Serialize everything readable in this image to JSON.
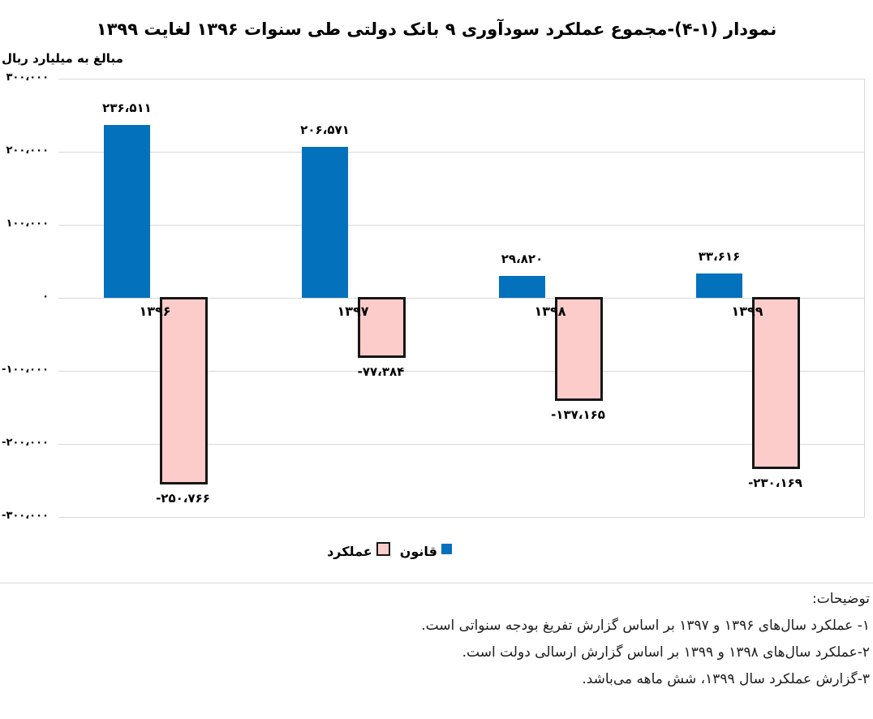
{
  "title": "نمودار (۱-۴)-مجموع عملکرد سودآوری ۹ بانک دولتی طی سنوات ۱۳۹۶ لغایت ۱۳۹۹",
  "axis": {
    "unit_label": "مبالغ به میلیارد ریال",
    "y_ticks": [
      {
        "label": "۳۰۰،۰۰۰",
        "value": 300000
      },
      {
        "label": "۲۰۰،۰۰۰",
        "value": 200000
      },
      {
        "label": "۱۰۰،۰۰۰",
        "value": 100000
      },
      {
        "label": "۰",
        "value": 0
      },
      {
        "label": "-۱۰۰،۰۰۰",
        "value": -100000
      },
      {
        "label": "-۲۰۰،۰۰۰",
        "value": -200000
      },
      {
        "label": "-۳۰۰،۰۰۰",
        "value": -300000
      }
    ]
  },
  "chart_data": {
    "type": "bar",
    "title": "نمودار (۱-۴)-مجموع عملکرد سودآوری ۹ بانک دولتی طی سنوات ۱۳۹۶ لغایت ۱۳۹۹",
    "ylabel": "مبالغ به میلیارد ریال",
    "categories": [
      "۱۳۹۶",
      "۱۳۹۷",
      "۱۳۹۸",
      "۱۳۹۹"
    ],
    "categories_western": [
      1396,
      1397,
      1398,
      1399
    ],
    "series": [
      {
        "name": "قانون",
        "color": "#0471bc",
        "values": [
          236511,
          206571,
          29820,
          33616
        ],
        "labels": [
          "۲۳۶،۵۱۱",
          "۲۰۶،۵۷۱",
          "۲۹،۸۲۰",
          "۳۳،۶۱۶"
        ]
      },
      {
        "name": "عملکرد",
        "color": "#fccccb",
        "border_color": "#161616",
        "values": [
          -250766,
          -77384,
          -137165,
          -230169
        ],
        "labels": [
          "-۲۵۰،۷۶۶",
          "-۷۷،۳۸۴",
          "-۱۳۷،۱۶۵",
          "-۲۳۰،۱۶۹"
        ]
      }
    ],
    "ylim": [
      -300000,
      300000
    ],
    "grid": true,
    "legend_position": "bottom-center"
  },
  "legend": {
    "entries": [
      {
        "label": "عملکرد",
        "color": "#fccccb",
        "border": "#161616"
      },
      {
        "label": "قانون",
        "color": "#0471bc",
        "border": "#0471bc"
      }
    ]
  },
  "notes": {
    "heading": "توضیحات:",
    "items": [
      "۱- عملکرد سال‌های ۱۳۹۶ و ۱۳۹۷ بر اساس گزارش تفریغ بودجه سنواتی است.",
      "۲-عملکرد سال‌های ۱۳۹۸ و ۱۳۹۹ بر اساس گزارش ارسالی دولت است.",
      "۳-گزارش عملکرد سال ۱۳۹۹، شش ماهه می‌باشد."
    ]
  }
}
